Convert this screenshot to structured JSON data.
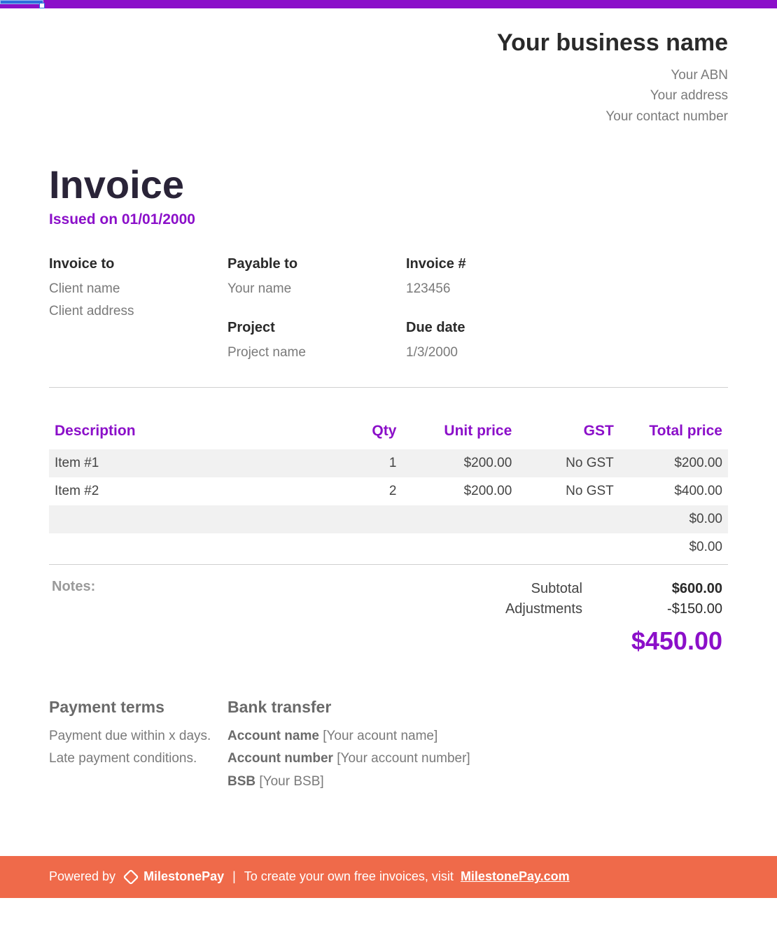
{
  "colors": {
    "accent": "#8b0fc9",
    "footer_bg": "#ef6a4a",
    "text_dark": "#2a2a2a",
    "text_muted": "#7a7a7a",
    "row_alt": "#f1f1f1",
    "border": "#d0d0d0"
  },
  "header": {
    "business_name": "Your business name",
    "lines": [
      "Your ABN",
      "Your address",
      "Your contact number"
    ]
  },
  "invoice": {
    "title": "Invoice",
    "issued_label": "Issued on 01/01/2000"
  },
  "meta": {
    "invoice_to": {
      "label": "Invoice to",
      "lines": [
        "Client name",
        "Client address"
      ]
    },
    "payable_to": {
      "label": "Payable to",
      "lines": [
        "Your name"
      ]
    },
    "invoice_no": {
      "label": "Invoice #",
      "lines": [
        "123456"
      ]
    },
    "project": {
      "label": "Project",
      "lines": [
        "Project name"
      ]
    },
    "due_date": {
      "label": "Due date",
      "lines": [
        "1/3/2000"
      ]
    }
  },
  "table": {
    "columns": [
      "Description",
      "Qty",
      "Unit price",
      "GST",
      "Total price"
    ],
    "align": [
      "left",
      "right",
      "right",
      "right",
      "right"
    ],
    "rows": [
      [
        "Item #1",
        "1",
        "$200.00",
        "No GST",
        "$200.00"
      ],
      [
        "Item #2",
        "2",
        "$200.00",
        "No GST",
        "$400.00"
      ],
      [
        "",
        "",
        "",
        "",
        "$0.00"
      ],
      [
        "",
        "",
        "",
        "",
        "$0.00"
      ]
    ]
  },
  "notes_label": "Notes:",
  "totals": {
    "subtotal": {
      "label": "Subtotal",
      "value": "$600.00"
    },
    "adjustments": {
      "label": "Adjustments",
      "value": "-$150.00"
    },
    "grand": "$450.00"
  },
  "payment": {
    "terms_heading": "Payment terms",
    "terms_lines": [
      "Payment due within x days.",
      "Late payment conditions."
    ],
    "bank_heading": "Bank transfer",
    "bank": [
      {
        "label": "Account name",
        "value": "[Your acount name]"
      },
      {
        "label": "Account number",
        "value": "[Your account number]"
      },
      {
        "label": "BSB",
        "value": "[Your BSB]"
      }
    ]
  },
  "footer": {
    "powered_by": "Powered by",
    "brand": "MilestonePay",
    "separator": "|",
    "cta_text": "To create your own free invoices, visit ",
    "cta_link_text": "MilestonePay.com"
  }
}
